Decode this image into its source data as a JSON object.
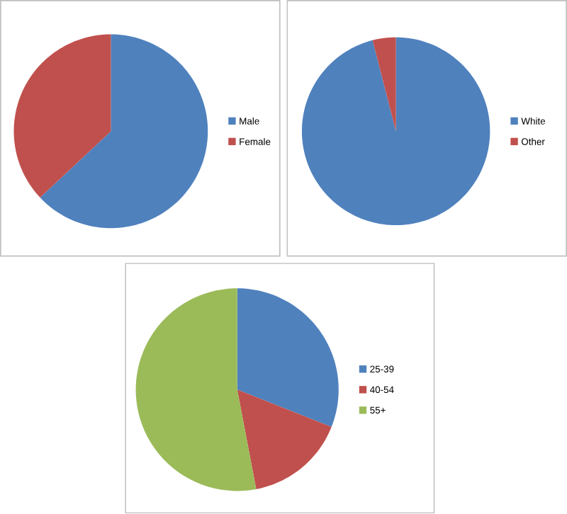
{
  "chart_data": [
    {
      "type": "pie",
      "categories": [
        "Male",
        "Female"
      ],
      "values": [
        63,
        37
      ],
      "colors": [
        "#4f81bd",
        "#c0504d"
      ],
      "legend": "right"
    },
    {
      "type": "pie",
      "categories": [
        "White",
        "Other"
      ],
      "values": [
        96,
        4
      ],
      "colors": [
        "#4f81bd",
        "#c0504d"
      ],
      "legend": "right"
    },
    {
      "type": "pie",
      "categories": [
        "25-39",
        "40-54",
        "55+"
      ],
      "values": [
        31,
        16,
        53
      ],
      "colors": [
        "#4f81bd",
        "#c0504d",
        "#9bbb59"
      ],
      "legend": "right"
    }
  ]
}
